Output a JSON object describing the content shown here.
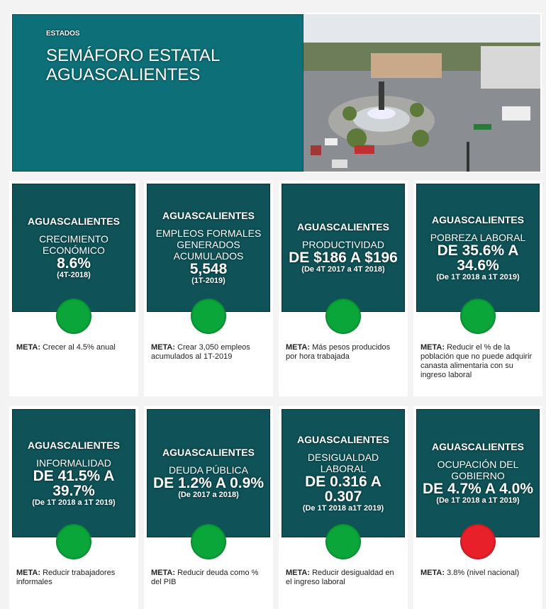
{
  "header": {
    "kicker": "ESTADOS",
    "title_line1": "SEMÁFORO ESTATAL",
    "title_line2": "AGUASCALIENTES"
  },
  "colors": {
    "hero": "#0d6f78",
    "card": "#0f5358",
    "green": "#0aa63a",
    "red": "#e8202a"
  },
  "meta_label": "META:",
  "cards": [
    {
      "state": "AGUASCALIENTES",
      "indicator": "CRECIMIENTO ECONÓMICO",
      "value": "8.6%",
      "period": "(4T-2018)",
      "status": "green",
      "meta": "Crecer al 4.5% anual"
    },
    {
      "state": "AGUASCALIENTES",
      "indicator": "EMPLEOS FORMALES GENERADOS ACUMULADOS",
      "value": "5,548",
      "period": "(1T-2019)",
      "status": "green",
      "meta": "Crear 3,050 empleos acumulados al 1T-2019"
    },
    {
      "state": "AGUASCALIENTES",
      "indicator": "PRODUCTIVIDAD",
      "value": "DE $186 A $196",
      "period": "(De 4T 2017 a 4T 2018)",
      "status": "green",
      "meta": "Más pesos producidos por hora trabajada"
    },
    {
      "state": "AGUASCALIENTES",
      "indicator": "POBREZA LABORAL",
      "value": "DE 35.6% A 34.6%",
      "period": "(De 1T 2018 a 1T 2019)",
      "status": "green",
      "meta": "Reducir el % de la población que no puede adquirir canasta alimentaria con su ingreso laboral"
    },
    {
      "state": "AGUASCALIENTES",
      "indicator": "INFORMALIDAD",
      "value": "DE 41.5% A 39.7%",
      "period": "(De 1T 2018 a 1T 2019)",
      "status": "green",
      "meta": "Reducir trabajadores informales"
    },
    {
      "state": "AGUASCALIENTES",
      "indicator": "DEUDA PÚBLICA",
      "value": "DE 1.2% A 0.9%",
      "period": "(De 2017 a 2018)",
      "status": "green",
      "meta": "Reducir deuda como % del PIB"
    },
    {
      "state": "AGUASCALIENTES",
      "indicator": "DESIGUALDAD LABORAL",
      "value": "DE 0.316 A 0.307",
      "period": "(De 1T 2018 a1T 2019)",
      "status": "green",
      "meta": "Reducir desigualdad en el ingreso laboral"
    },
    {
      "state": "AGUASCALIENTES",
      "indicator": "OCUPACIÓN DEL GOBIERNO",
      "value": "DE 4.7% A 4.0%",
      "period": "(De 1T 2018 a 1T 2019)",
      "status": "red",
      "meta": "3.8% (nivel nacional)"
    }
  ]
}
